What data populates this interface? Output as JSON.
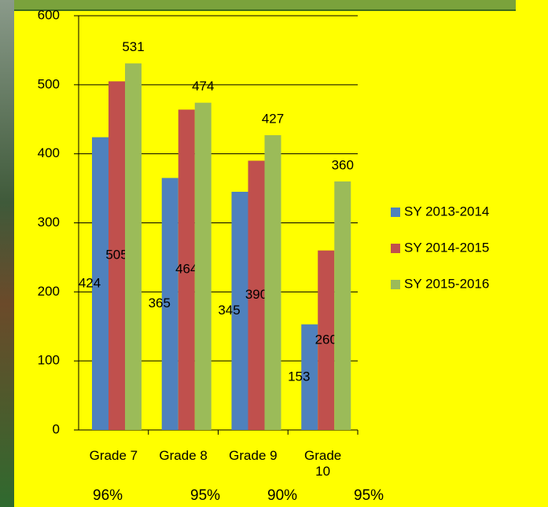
{
  "chart_data": {
    "type": "bar",
    "categories": [
      "Grade 7",
      "Grade 8",
      "Grade 9",
      "Grade 10"
    ],
    "series": [
      {
        "name": "SY 2013-2014",
        "color": "#4f81bd",
        "values": [
          424,
          365,
          345,
          153
        ]
      },
      {
        "name": "SY 2014-2015",
        "color": "#c0504d",
        "values": [
          505,
          464,
          390,
          260
        ]
      },
      {
        "name": "SY 2015-2016",
        "color": "#9bbb59",
        "values": [
          531,
          474,
          427,
          360
        ]
      }
    ],
    "ylim": [
      0,
      600
    ],
    "yticks": [
      0,
      100,
      200,
      300,
      400,
      500,
      600
    ],
    "grid": true,
    "legend": "right",
    "annotations": [
      "96%",
      "95%",
      "90%",
      "95%"
    ]
  }
}
